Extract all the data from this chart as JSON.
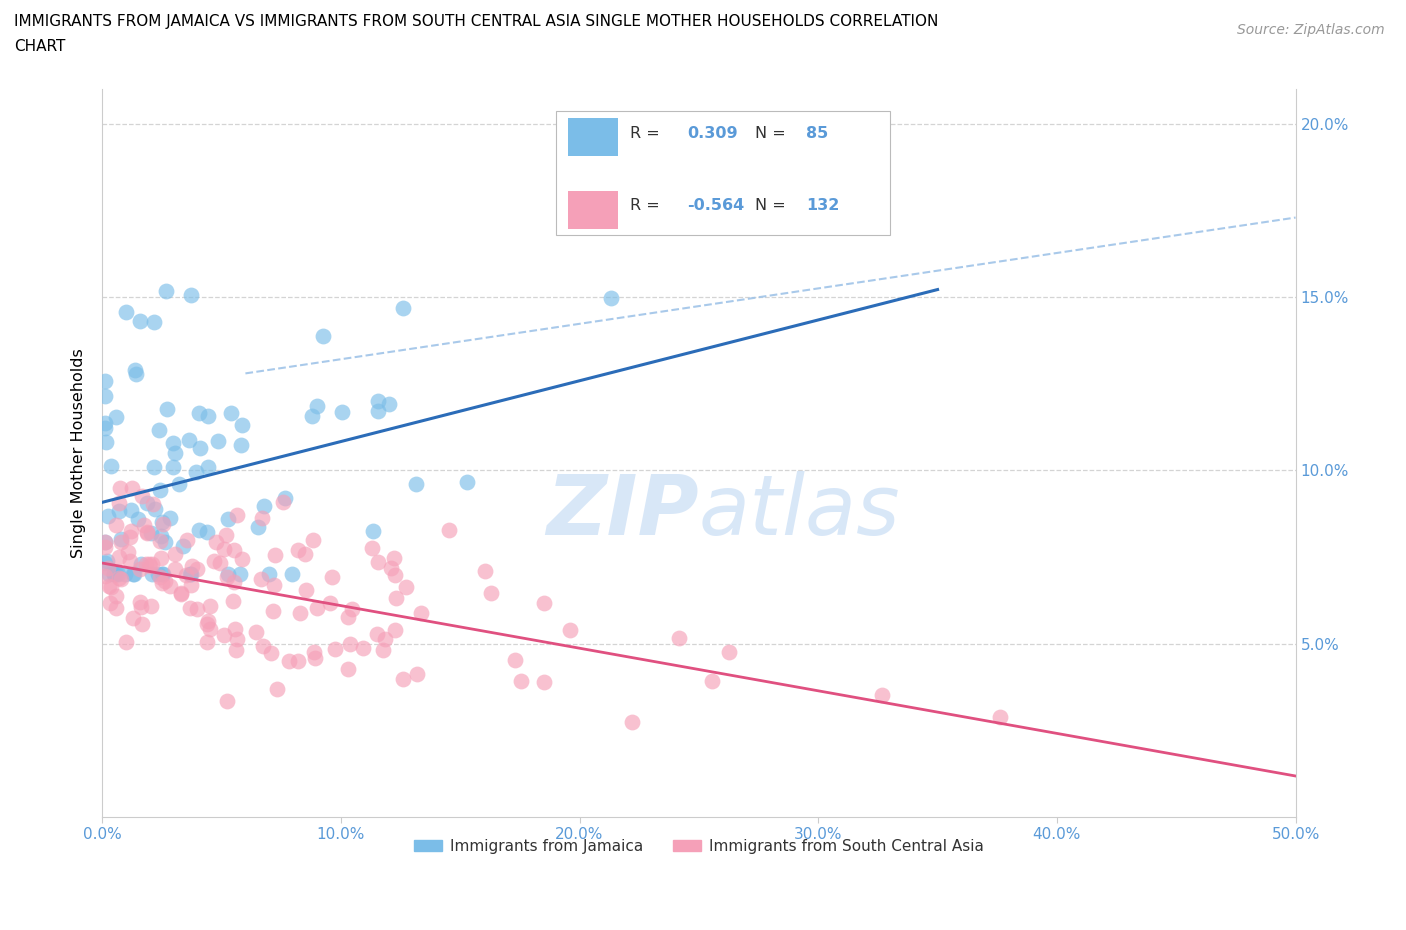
{
  "title_line1": "IMMIGRANTS FROM JAMAICA VS IMMIGRANTS FROM SOUTH CENTRAL ASIA SINGLE MOTHER HOUSEHOLDS CORRELATION",
  "title_line2": "CHART",
  "source": "Source: ZipAtlas.com",
  "ylabel": "Single Mother Households",
  "xlim": [
    0.0,
    0.5
  ],
  "ylim": [
    0.0,
    0.21
  ],
  "blue_R": 0.309,
  "blue_N": 85,
  "pink_R": -0.564,
  "pink_N": 132,
  "blue_color": "#7bbde8",
  "pink_color": "#f5a0b8",
  "blue_line_color": "#2b6cb8",
  "pink_line_color": "#e05080",
  "dash_line_color": "#a0c4e8",
  "legend_label_blue": "Immigrants from Jamaica",
  "legend_label_pink": "Immigrants from South Central Asia",
  "watermark_color": "#c8ddf5",
  "grid_color": "#d0d0d0",
  "tick_color": "#5a9ad8",
  "blue_scatter_seed": 12,
  "pink_scatter_seed": 99
}
